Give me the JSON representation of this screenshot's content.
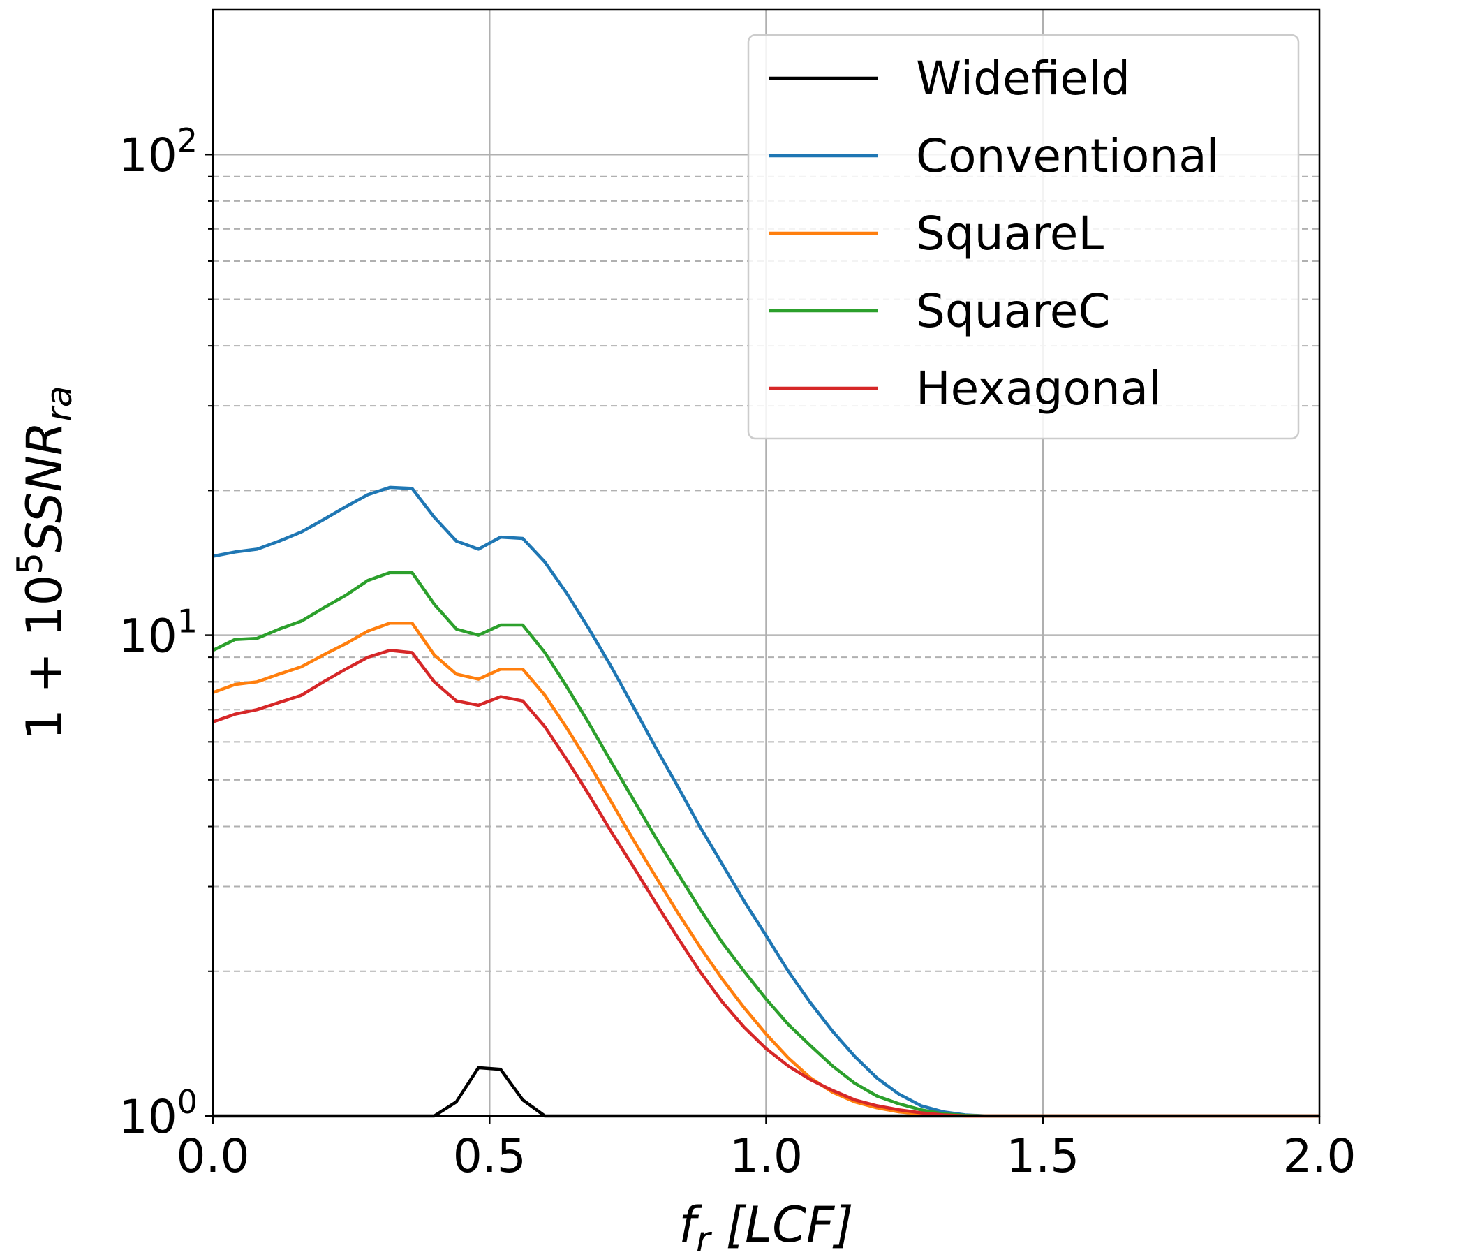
{
  "chart_data": {
    "type": "line",
    "xlabel": "f_r [LCF]",
    "xlabel_parts": {
      "main": "f",
      "sub": "r",
      "rest": " [LCF]"
    },
    "ylabel": "1 + 10^5 SSNR_ra",
    "ylabel_parts": {
      "lead": "1 + 10",
      "exp": "5",
      "main": "SSNR",
      "sub": "ra"
    },
    "xlim": [
      0.0,
      2.0
    ],
    "ylim": [
      1,
      200
    ],
    "yscale": "log",
    "grid": {
      "major": "solid",
      "minor_y": "dashed"
    },
    "legend_position": "upper-right",
    "x_ticks": [
      {
        "value": 0.0,
        "label": "0.0"
      },
      {
        "value": 0.5,
        "label": "0.5"
      },
      {
        "value": 1.0,
        "label": "1.0"
      },
      {
        "value": 1.5,
        "label": "1.5"
      },
      {
        "value": 2.0,
        "label": "2.0"
      }
    ],
    "y_ticks": [
      {
        "value": 1,
        "base": "10",
        "exp": "0"
      },
      {
        "value": 10,
        "base": "10",
        "exp": "1"
      },
      {
        "value": 100,
        "base": "10",
        "exp": "2"
      }
    ],
    "x": [
      0.0,
      0.04,
      0.08,
      0.12,
      0.16,
      0.2,
      0.24,
      0.28,
      0.32,
      0.36,
      0.4,
      0.44,
      0.48,
      0.52,
      0.56,
      0.6,
      0.64,
      0.68,
      0.72,
      0.76,
      0.8,
      0.84,
      0.88,
      0.92,
      0.96,
      1.0,
      1.04,
      1.08,
      1.12,
      1.16,
      1.2,
      1.24,
      1.28,
      1.32,
      1.36,
      1.4,
      1.44,
      1.5,
      1.6,
      1.7,
      1.8,
      1.9,
      2.0
    ],
    "series": [
      {
        "name": "Widefield",
        "color": "#000000",
        "values": [
          1.0,
          1.0,
          1.0,
          1.0,
          1.0,
          1.0,
          1.0,
          1.0,
          1.0,
          1.0,
          1.0,
          1.07,
          1.26,
          1.25,
          1.08,
          1.0,
          1.0,
          1.0,
          1.0,
          1.0,
          1.0,
          1.0,
          1.0,
          1.0,
          1.0,
          1.0,
          1.0,
          1.0,
          1.0,
          1.0,
          1.0,
          1.0,
          1.0,
          1.0,
          1.0,
          1.0,
          1.0,
          1.0,
          1.0,
          1.0,
          1.0,
          1.0,
          1.0
        ]
      },
      {
        "name": "Conventional",
        "color": "#1f77b4",
        "values": [
          14.6,
          14.9,
          15.1,
          15.7,
          16.4,
          17.4,
          18.5,
          19.6,
          20.3,
          20.2,
          17.6,
          15.7,
          15.1,
          16.0,
          15.9,
          14.2,
          12.2,
          10.3,
          8.6,
          7.1,
          5.85,
          4.85,
          4.0,
          3.35,
          2.8,
          2.37,
          2.0,
          1.72,
          1.5,
          1.33,
          1.2,
          1.11,
          1.05,
          1.02,
          1.005,
          1.0,
          1.0,
          1.0,
          1.0,
          1.0,
          1.0,
          1.0,
          1.0
        ]
      },
      {
        "name": "SquareL",
        "color": "#ff7f0e",
        "values": [
          7.6,
          7.9,
          8.0,
          8.3,
          8.6,
          9.1,
          9.6,
          10.2,
          10.6,
          10.6,
          9.1,
          8.3,
          8.1,
          8.5,
          8.5,
          7.5,
          6.4,
          5.4,
          4.5,
          3.75,
          3.15,
          2.65,
          2.25,
          1.93,
          1.68,
          1.48,
          1.32,
          1.2,
          1.12,
          1.07,
          1.04,
          1.02,
          1.01,
          1.005,
          1.0,
          1.0,
          1.0,
          1.0,
          1.0,
          1.0,
          1.0,
          1.0,
          1.0
        ]
      },
      {
        "name": "SquareC",
        "color": "#2ca02c",
        "values": [
          9.3,
          9.8,
          9.85,
          10.3,
          10.7,
          11.4,
          12.1,
          13.0,
          13.5,
          13.5,
          11.6,
          10.3,
          10.0,
          10.5,
          10.5,
          9.2,
          7.8,
          6.55,
          5.45,
          4.55,
          3.8,
          3.2,
          2.7,
          2.3,
          2.0,
          1.75,
          1.55,
          1.4,
          1.27,
          1.17,
          1.1,
          1.06,
          1.03,
          1.01,
          1.003,
          1.0,
          1.0,
          1.0,
          1.0,
          1.0,
          1.0,
          1.0,
          1.0
        ]
      },
      {
        "name": "Hexagonal",
        "color": "#d62728",
        "values": [
          6.6,
          6.85,
          7.0,
          7.25,
          7.5,
          8.0,
          8.5,
          9.0,
          9.3,
          9.2,
          8.0,
          7.3,
          7.15,
          7.45,
          7.3,
          6.45,
          5.5,
          4.65,
          3.9,
          3.3,
          2.78,
          2.35,
          2.0,
          1.73,
          1.53,
          1.38,
          1.27,
          1.19,
          1.13,
          1.08,
          1.05,
          1.03,
          1.015,
          1.005,
          1.0,
          1.0,
          1.0,
          1.0,
          1.0,
          1.0,
          1.0,
          1.0,
          1.0
        ]
      }
    ]
  }
}
